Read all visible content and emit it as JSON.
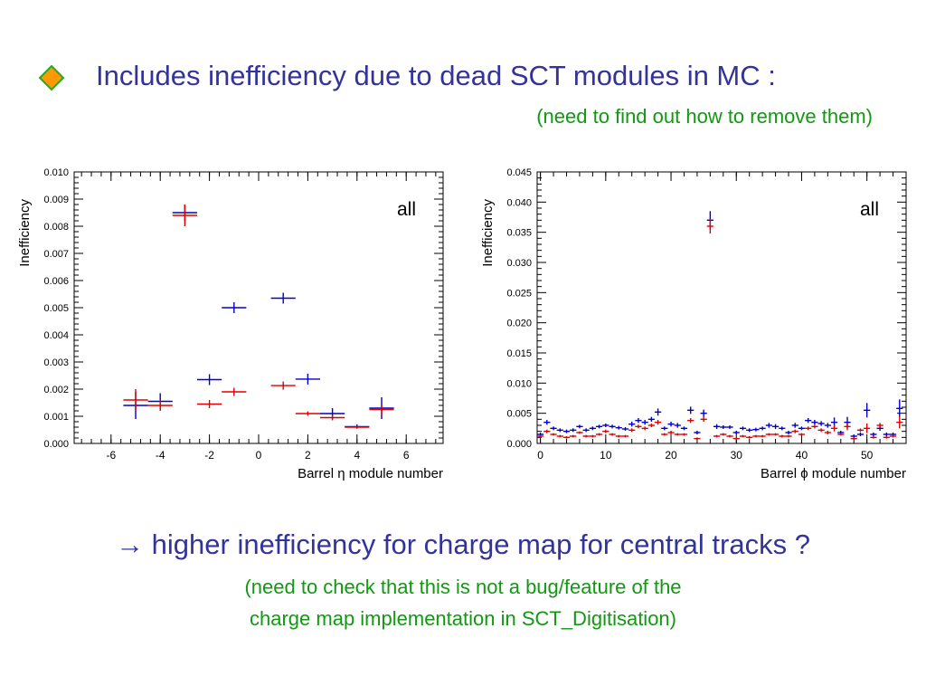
{
  "slide": {
    "title": "Includes inefficiency due to dead SCT modules in MC :",
    "subtitle": "(need to find out how to remove them)",
    "conclusion_arrow": "→",
    "conclusion": "higher inefficiency for charge map for central tracks ?",
    "note_line1": "(need to check that this is not a bug/feature of the",
    "note_line2": "charge map implementation in SCT_Digitisation)",
    "bullet_icon": "diamond-bullet-icon",
    "colors": {
      "title": "#33339a",
      "note": "#119911",
      "bullet_fill": "#ff9900",
      "bullet_border": "#22aa22",
      "series_blue": "#0000cc",
      "series_red": "#dd0000"
    }
  },
  "chart_data": [
    {
      "type": "scatter",
      "annotation": "all",
      "xlabel": "Barrel η module number",
      "ylabel": "Inefficiency",
      "xlim": [
        -7.5,
        7.5
      ],
      "ylim": [
        0,
        0.01
      ],
      "xticks": [
        -6,
        -4,
        -2,
        0,
        2,
        4,
        6
      ],
      "xtick_labels": [
        "-6",
        "-4",
        "-2",
        "0",
        "2",
        "4",
        "6"
      ],
      "yticks": [
        0,
        0.001,
        0.002,
        0.003,
        0.004,
        0.005,
        0.006,
        0.007,
        0.008,
        0.009,
        0.01
      ],
      "ytick_labels": [
        "0.000",
        "0.001",
        "0.002",
        "0.003",
        "0.004",
        "0.005",
        "0.006",
        "0.007",
        "0.008",
        "0.009",
        "0.010"
      ],
      "grid": false,
      "series": [
        {
          "color": "#0000cc",
          "x": [
            -5,
            -4,
            -3,
            -2,
            -1,
            1,
            2,
            3,
            4,
            5
          ],
          "y": [
            0.0014,
            0.00155,
            0.0085,
            0.00235,
            0.005,
            0.00535,
            0.00237,
            0.0011,
            0.00062,
            0.0013
          ],
          "yerr": [
            0.0005,
            0.0003,
            0.0003,
            0.0002,
            0.0002,
            0.0002,
            0.0002,
            0.0002,
            8e-05,
            0.0004
          ]
        },
        {
          "color": "#dd0000",
          "x": [
            -5,
            -4,
            -3,
            -2,
            -1,
            1,
            2,
            3,
            4,
            5
          ],
          "y": [
            0.0016,
            0.0014,
            0.0084,
            0.00145,
            0.0019,
            0.00213,
            0.0011,
            0.00095,
            0.0006,
            0.00125
          ],
          "yerr": [
            0.0004,
            0.0002,
            0.0004,
            0.00015,
            0.00015,
            0.00015,
            8e-05,
            0.0001,
            5e-05,
            0.0002
          ]
        }
      ]
    },
    {
      "type": "scatter",
      "annotation": "all",
      "xlabel": "Barrel ϕ module number",
      "ylabel": "Inefficiency",
      "xlim": [
        -0.5,
        56
      ],
      "ylim": [
        0,
        0.045
      ],
      "xticks": [
        0,
        10,
        20,
        30,
        40,
        50
      ],
      "xtick_labels": [
        "0",
        "10",
        "20",
        "30",
        "40",
        "50"
      ],
      "yticks": [
        0,
        0.005,
        0.01,
        0.015,
        0.02,
        0.025,
        0.03,
        0.035,
        0.04,
        0.045
      ],
      "ytick_labels": [
        "0.000",
        "0.005",
        "0.010",
        "0.015",
        "0.020",
        "0.025",
        "0.030",
        "0.035",
        "0.040",
        "0.045"
      ],
      "grid": false,
      "series": [
        {
          "color": "#0000cc",
          "x": [
            0,
            1,
            2,
            3,
            4,
            5,
            6,
            7,
            8,
            9,
            10,
            11,
            12,
            13,
            14,
            15,
            16,
            17,
            18,
            19,
            20,
            21,
            22,
            23,
            24,
            25,
            26,
            27,
            28,
            29,
            30,
            31,
            32,
            33,
            34,
            35,
            36,
            37,
            38,
            39,
            40,
            41,
            42,
            43,
            44,
            45,
            46,
            47,
            48,
            49,
            50,
            51,
            52,
            53,
            54,
            55
          ],
          "y": [
            0.0015,
            0.0035,
            0.0025,
            0.0022,
            0.002,
            0.0022,
            0.0028,
            0.0022,
            0.0025,
            0.0028,
            0.003,
            0.0028,
            0.0026,
            0.0024,
            0.0032,
            0.0038,
            0.0035,
            0.004,
            0.0052,
            0.0025,
            0.0032,
            0.003,
            0.0025,
            0.0055,
            0.0018,
            0.005,
            0.037,
            0.0028,
            0.0027,
            0.0027,
            0.0018,
            0.0025,
            0.0022,
            0.0023,
            0.0025,
            0.003,
            0.0028,
            0.0025,
            0.0018,
            0.003,
            0.0025,
            0.0038,
            0.0035,
            0.0033,
            0.003,
            0.0035,
            0.0018,
            0.0035,
            0.0012,
            0.0015,
            0.0055,
            0.0015,
            0.0025,
            0.0015,
            0.0015,
            0.0058
          ],
          "yerr": [
            0.0003,
            0.0004,
            0.0003,
            0.0003,
            0.0003,
            0.0003,
            0.0003,
            0.0003,
            0.0003,
            0.0003,
            0.0003,
            0.0003,
            0.0003,
            0.0003,
            0.0004,
            0.0004,
            0.0004,
            0.0004,
            0.0006,
            0.0003,
            0.0004,
            0.0004,
            0.0003,
            0.0006,
            0.0003,
            0.0006,
            0.0015,
            0.0004,
            0.0003,
            0.0003,
            0.0003,
            0.0003,
            0.0003,
            0.0003,
            0.0003,
            0.0004,
            0.0004,
            0.0003,
            0.0003,
            0.0004,
            0.0003,
            0.0004,
            0.0004,
            0.0004,
            0.0004,
            0.0008,
            0.0003,
            0.0009,
            0.0003,
            0.0003,
            0.0012,
            0.0003,
            0.0004,
            0.0003,
            0.0003,
            0.0015
          ]
        },
        {
          "color": "#dd0000",
          "x": [
            0,
            1,
            2,
            3,
            4,
            5,
            6,
            7,
            8,
            9,
            10,
            11,
            12,
            13,
            14,
            15,
            16,
            17,
            18,
            19,
            20,
            21,
            22,
            23,
            24,
            25,
            26,
            27,
            28,
            29,
            30,
            31,
            32,
            33,
            34,
            35,
            36,
            37,
            38,
            39,
            40,
            41,
            42,
            43,
            44,
            45,
            46,
            47,
            48,
            49,
            50,
            51,
            52,
            53,
            54,
            55
          ],
          "y": [
            0.0012,
            0.002,
            0.0015,
            0.0012,
            0.001,
            0.0012,
            0.0018,
            0.0012,
            0.0012,
            0.0015,
            0.002,
            0.0015,
            0.0012,
            0.0012,
            0.0022,
            0.0028,
            0.0025,
            0.003,
            0.0035,
            0.0015,
            0.0018,
            0.0015,
            0.0015,
            0.0038,
            0.0008,
            0.004,
            0.036,
            0.0012,
            0.0015,
            0.0012,
            0.0008,
            0.0012,
            0.001,
            0.0012,
            0.0012,
            0.0015,
            0.0015,
            0.0012,
            0.0012,
            0.002,
            0.0015,
            0.0025,
            0.0028,
            0.0022,
            0.0018,
            0.0025,
            0.0015,
            0.0028,
            0.0008,
            0.0022,
            0.0025,
            0.001,
            0.003,
            0.001,
            0.0012,
            0.0035
          ],
          "yerr": [
            0.0002,
            0.0003,
            0.0002,
            0.0002,
            0.0002,
            0.0002,
            0.0002,
            0.0002,
            0.0002,
            0.0002,
            0.0003,
            0.0002,
            0.0002,
            0.0002,
            0.0003,
            0.0003,
            0.0003,
            0.0003,
            0.0004,
            0.0002,
            0.0003,
            0.0002,
            0.0002,
            0.0004,
            0.0002,
            0.0004,
            0.0012,
            0.0002,
            0.0002,
            0.0002,
            0.0002,
            0.0002,
            0.0002,
            0.0002,
            0.0002,
            0.0002,
            0.0002,
            0.0002,
            0.0002,
            0.0003,
            0.0002,
            0.0003,
            0.0003,
            0.0003,
            0.0003,
            0.0005,
            0.0002,
            0.0006,
            0.0002,
            0.0003,
            0.0008,
            0.0002,
            0.0004,
            0.0002,
            0.0002,
            0.001
          ]
        }
      ]
    }
  ]
}
